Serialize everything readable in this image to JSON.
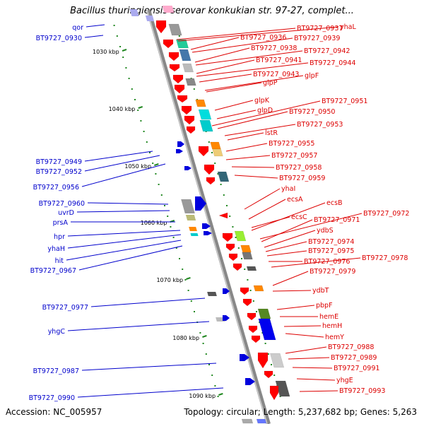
{
  "title": "Bacillus thuringiensis serovar konkukian str. 97-27, complet...",
  "accession": "Accession: NC_005957",
  "topology": "Topology: circular; Length: 5,237,682 bp; Genes: 5,263",
  "colors": {
    "left_labels": "#0000cc",
    "right_labels": "#dd0000",
    "backbone": "#888888",
    "ticks": "#228822"
  },
  "kbp_ticks": [
    "1030 kbp",
    "1040 kbp",
    "1050 kbp",
    "1060 kbp",
    "1070 kbp",
    "1080 kbp",
    "1090 kbp"
  ],
  "left_genes": [
    "qor",
    "BT9727_0930",
    "BT9727_0949",
    "BT9727_0952",
    "BT9727_0956",
    "BT9727_0960",
    "uvrD",
    "prsA",
    "hpr",
    "yhaH",
    "hit",
    "BT9727_0967",
    "BT9727_0977",
    "yhgC",
    "BT9727_0987",
    "BT9727_0990"
  ],
  "right_genes": [
    "BT9727_0937",
    "yhaL",
    "BT9727_0936",
    "BT9727_0939",
    "BT9727_0938",
    "BT9727_0942",
    "BT9727_0941",
    "BT9727_0944",
    "BT9727_0943",
    "glpF",
    "glpP",
    "BT9727_0951",
    "glpK",
    "glpD",
    "BT9727_0950",
    "BT9727_0953",
    "lstR",
    "BT9727_0955",
    "BT9727_0957",
    "BT9727_0958",
    "BT9727_0959",
    "yhaI",
    "ecsA",
    "ecsB",
    "ecsC",
    "BT9727_0972",
    "BT9727_0971",
    "ydbS",
    "BT9727_0974",
    "BT9727_0975",
    "BT9727_0976",
    "BT9727_0978",
    "BT9727_0979",
    "ydbT",
    "pbpF",
    "hemE",
    "hemH",
    "hemY",
    "BT9727_0988",
    "BT9727_0989",
    "BT9727_0991",
    "yhgE",
    "BT9727_0993"
  ]
}
